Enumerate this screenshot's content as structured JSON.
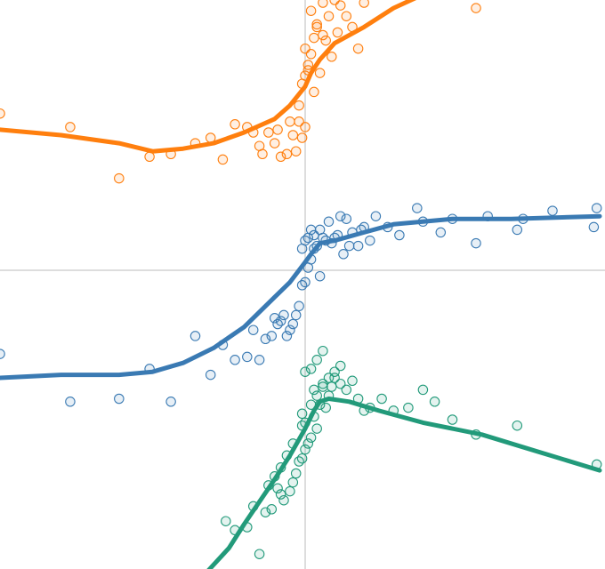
{
  "chart_data": {
    "type": "scatter",
    "xlim": [
      -1.0,
      1.0
    ],
    "ylim": [
      -1.0,
      1.0
    ],
    "grid": false,
    "axes": "zero-lines",
    "legend": "none",
    "series": [
      {
        "color": "#ff7f0e",
        "points": [
          [
            -1.0,
            0.58
          ],
          [
            -0.77,
            0.53
          ],
          [
            -0.61,
            0.34
          ],
          [
            -0.51,
            0.42
          ],
          [
            -0.44,
            0.43
          ],
          [
            -0.36,
            0.47
          ],
          [
            -0.31,
            0.49
          ],
          [
            -0.27,
            0.41
          ],
          [
            -0.23,
            0.54
          ],
          [
            -0.19,
            0.53
          ],
          [
            -0.17,
            0.51
          ],
          [
            -0.15,
            0.46
          ],
          [
            -0.14,
            0.43
          ],
          [
            -0.12,
            0.51
          ],
          [
            -0.1,
            0.47
          ],
          [
            -0.09,
            0.52
          ],
          [
            -0.08,
            0.42
          ],
          [
            -0.06,
            0.43
          ],
          [
            -0.05,
            0.55
          ],
          [
            -0.04,
            0.5
          ],
          [
            -0.03,
            0.44
          ],
          [
            -0.02,
            0.55
          ],
          [
            -0.01,
            0.49
          ],
          [
            0.0,
            0.53
          ],
          [
            -0.02,
            0.61
          ],
          [
            -0.01,
            0.69
          ],
          [
            0.0,
            0.72
          ],
          [
            0.01,
            0.76
          ],
          [
            0.02,
            0.8
          ],
          [
            0.03,
            0.86
          ],
          [
            0.04,
            0.9
          ],
          [
            0.0,
            0.82
          ],
          [
            0.01,
            0.74
          ],
          [
            0.03,
            0.66
          ],
          [
            0.05,
            0.73
          ],
          [
            0.06,
            0.87
          ],
          [
            0.08,
            0.94
          ],
          [
            0.09,
            0.79
          ],
          [
            0.12,
            0.98
          ],
          [
            0.14,
            0.94
          ],
          [
            0.16,
            0.9
          ],
          [
            0.18,
            0.82
          ],
          [
            0.2,
            0.99
          ],
          [
            0.58,
            0.97
          ],
          [
            0.06,
            0.99
          ],
          [
            0.1,
            1.0
          ],
          [
            0.02,
            0.96
          ],
          [
            0.04,
            0.91
          ],
          [
            0.07,
            0.85
          ],
          [
            0.11,
            0.88
          ]
        ],
        "trend": [
          [
            -1.0,
            0.52
          ],
          [
            -0.8,
            0.5
          ],
          [
            -0.61,
            0.47
          ],
          [
            -0.5,
            0.44
          ],
          [
            -0.4,
            0.45
          ],
          [
            -0.3,
            0.47
          ],
          [
            -0.2,
            0.51
          ],
          [
            -0.1,
            0.56
          ],
          [
            -0.05,
            0.61
          ],
          [
            0.0,
            0.68
          ],
          [
            0.02,
            0.73
          ],
          [
            0.05,
            0.78
          ],
          [
            0.1,
            0.84
          ],
          [
            0.2,
            0.9
          ],
          [
            0.3,
            0.97
          ],
          [
            0.4,
            1.02
          ]
        ]
      },
      {
        "color": "#3a7ab3",
        "points": [
          [
            -1.0,
            -0.28
          ],
          [
            -0.77,
            -0.44
          ],
          [
            -0.61,
            -0.43
          ],
          [
            -0.51,
            -0.33
          ],
          [
            -0.44,
            -0.44
          ],
          [
            -0.36,
            -0.22
          ],
          [
            -0.31,
            -0.35
          ],
          [
            -0.27,
            -0.25
          ],
          [
            -0.23,
            -0.3
          ],
          [
            -0.19,
            -0.29
          ],
          [
            -0.17,
            -0.2
          ],
          [
            -0.15,
            -0.3
          ],
          [
            -0.13,
            -0.23
          ],
          [
            -0.11,
            -0.22
          ],
          [
            -0.1,
            -0.16
          ],
          [
            -0.09,
            -0.18
          ],
          [
            -0.08,
            -0.17
          ],
          [
            -0.07,
            -0.15
          ],
          [
            -0.06,
            -0.22
          ],
          [
            -0.05,
            -0.2
          ],
          [
            -0.04,
            -0.18
          ],
          [
            -0.03,
            -0.15
          ],
          [
            -0.02,
            -0.12
          ],
          [
            -0.01,
            -0.05
          ],
          [
            0.0,
            -0.04
          ],
          [
            0.01,
            0.01
          ],
          [
            0.02,
            0.04
          ],
          [
            0.03,
            0.08
          ],
          [
            0.04,
            0.09
          ],
          [
            0.05,
            -0.02
          ],
          [
            0.06,
            0.12
          ],
          [
            0.08,
            0.18
          ],
          [
            0.1,
            0.12
          ],
          [
            0.12,
            0.2
          ],
          [
            0.14,
            0.19
          ],
          [
            0.16,
            0.14
          ],
          [
            0.18,
            0.09
          ],
          [
            0.2,
            0.16
          ],
          [
            0.22,
            0.11
          ],
          [
            0.28,
            0.16
          ],
          [
            0.32,
            0.13
          ],
          [
            0.4,
            0.18
          ],
          [
            0.46,
            0.14
          ],
          [
            0.58,
            0.1
          ],
          [
            0.72,
            0.15
          ],
          [
            0.98,
            0.16
          ],
          [
            -0.01,
            0.08
          ],
          [
            0.0,
            0.11
          ],
          [
            0.01,
            0.12
          ],
          [
            0.03,
            0.13
          ],
          [
            0.05,
            0.15
          ],
          [
            0.07,
            0.11
          ],
          [
            0.09,
            0.1
          ],
          [
            0.11,
            0.13
          ],
          [
            0.13,
            0.06
          ],
          [
            0.15,
            0.09
          ],
          [
            0.19,
            0.15
          ],
          [
            0.24,
            0.2
          ],
          [
            0.38,
            0.23
          ],
          [
            0.5,
            0.19
          ],
          [
            0.62,
            0.2
          ],
          [
            0.74,
            0.19
          ],
          [
            0.84,
            0.22
          ],
          [
            0.99,
            0.23
          ],
          [
            0.02,
            0.15
          ]
        ],
        "trend": [
          [
            -1.0,
            -0.36
          ],
          [
            -0.8,
            -0.35
          ],
          [
            -0.61,
            -0.35
          ],
          [
            -0.5,
            -0.34
          ],
          [
            -0.4,
            -0.31
          ],
          [
            -0.3,
            -0.26
          ],
          [
            -0.2,
            -0.19
          ],
          [
            -0.1,
            -0.09
          ],
          [
            -0.05,
            -0.04
          ],
          [
            0.0,
            0.03
          ],
          [
            0.02,
            0.06
          ],
          [
            0.05,
            0.1
          ],
          [
            0.1,
            0.11
          ],
          [
            0.2,
            0.14
          ],
          [
            0.3,
            0.17
          ],
          [
            0.5,
            0.19
          ],
          [
            0.7,
            0.19
          ],
          [
            1.0,
            0.2
          ]
        ]
      },
      {
        "color": "#229a7a",
        "points": [
          [
            -0.26,
            -0.84
          ],
          [
            -0.23,
            -0.87
          ],
          [
            -0.19,
            -0.86
          ],
          [
            -0.17,
            -0.79
          ],
          [
            -0.15,
            -0.95
          ],
          [
            -0.13,
            -0.81
          ],
          [
            -0.11,
            -0.8
          ],
          [
            -0.09,
            -0.73
          ],
          [
            -0.08,
            -0.75
          ],
          [
            -0.07,
            -0.77
          ],
          [
            -0.05,
            -0.74
          ],
          [
            -0.04,
            -0.71
          ],
          [
            -0.03,
            -0.68
          ],
          [
            -0.02,
            -0.64
          ],
          [
            -0.01,
            -0.63
          ],
          [
            0.0,
            -0.6
          ],
          [
            0.01,
            -0.58
          ],
          [
            0.02,
            -0.56
          ],
          [
            0.03,
            -0.49
          ],
          [
            0.04,
            -0.53
          ],
          [
            0.05,
            -0.45
          ],
          [
            0.06,
            -0.39
          ],
          [
            0.07,
            -0.46
          ],
          [
            0.08,
            -0.42
          ],
          [
            0.09,
            -0.39
          ],
          [
            0.1,
            -0.36
          ],
          [
            0.12,
            -0.38
          ],
          [
            0.14,
            -0.4
          ],
          [
            0.16,
            -0.37
          ],
          [
            0.18,
            -0.43
          ],
          [
            0.2,
            -0.47
          ],
          [
            0.22,
            -0.46
          ],
          [
            0.26,
            -0.43
          ],
          [
            0.3,
            -0.47
          ],
          [
            0.35,
            -0.46
          ],
          [
            0.4,
            -0.4
          ],
          [
            0.44,
            -0.44
          ],
          [
            0.5,
            -0.5
          ],
          [
            0.58,
            -0.55
          ],
          [
            0.72,
            -0.52
          ],
          [
            0.99,
            -0.65
          ],
          [
            -0.01,
            -0.48
          ],
          [
            0.0,
            -0.51
          ],
          [
            0.02,
            -0.45
          ],
          [
            0.04,
            -0.42
          ],
          [
            0.06,
            -0.38
          ],
          [
            0.08,
            -0.36
          ],
          [
            0.1,
            -0.34
          ],
          [
            0.12,
            -0.32
          ],
          [
            0.0,
            -0.34
          ],
          [
            0.02,
            -0.33
          ],
          [
            0.04,
            -0.3
          ],
          [
            0.06,
            -0.27
          ],
          [
            0.03,
            -0.4
          ],
          [
            -0.01,
            -0.52
          ],
          [
            -0.04,
            -0.58
          ],
          [
            -0.06,
            -0.62
          ],
          [
            -0.08,
            -0.66
          ],
          [
            -0.1,
            -0.69
          ],
          [
            -0.12,
            -0.72
          ]
        ],
        "trend": [
          [
            -0.34,
            -1.03
          ],
          [
            -0.25,
            -0.93
          ],
          [
            -0.2,
            -0.85
          ],
          [
            -0.1,
            -0.7
          ],
          [
            -0.05,
            -0.62
          ],
          [
            0.0,
            -0.53
          ],
          [
            0.03,
            -0.47
          ],
          [
            0.05,
            -0.44
          ],
          [
            0.08,
            -0.43
          ],
          [
            0.15,
            -0.44
          ],
          [
            0.25,
            -0.47
          ],
          [
            0.4,
            -0.51
          ],
          [
            0.6,
            -0.55
          ],
          [
            0.8,
            -0.61
          ],
          [
            1.0,
            -0.67
          ]
        ]
      }
    ]
  }
}
